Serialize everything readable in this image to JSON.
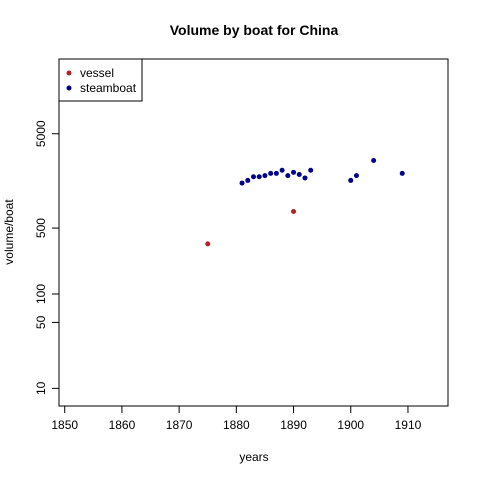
{
  "chart_data": {
    "type": "scatter",
    "title": "Volume by boat for China",
    "xlabel": "years",
    "ylabel": "volume/boat",
    "xlim": [
      1849,
      1917
    ],
    "ylim": [
      6.5,
      31000
    ],
    "yscale": "log",
    "xticks": [
      1850,
      1860,
      1870,
      1880,
      1890,
      1900,
      1910
    ],
    "yticks": [
      10,
      50,
      100,
      500,
      5000
    ],
    "legend_position": "top-left",
    "series": [
      {
        "name": "vessel",
        "color": "#b22222",
        "x": [
          1875,
          1890
        ],
        "y": [
          340,
          750
        ]
      },
      {
        "name": "steamboat",
        "color": "#00008b",
        "x": [
          1881,
          1882,
          1883,
          1884,
          1885,
          1886,
          1887,
          1888,
          1889,
          1890,
          1891,
          1892,
          1893,
          1900,
          1901,
          1904,
          1909
        ],
        "y": [
          1500,
          1600,
          1750,
          1750,
          1800,
          1900,
          1900,
          2050,
          1800,
          1950,
          1850,
          1700,
          2050,
          1600,
          1800,
          2600,
          1900
        ]
      }
    ]
  }
}
